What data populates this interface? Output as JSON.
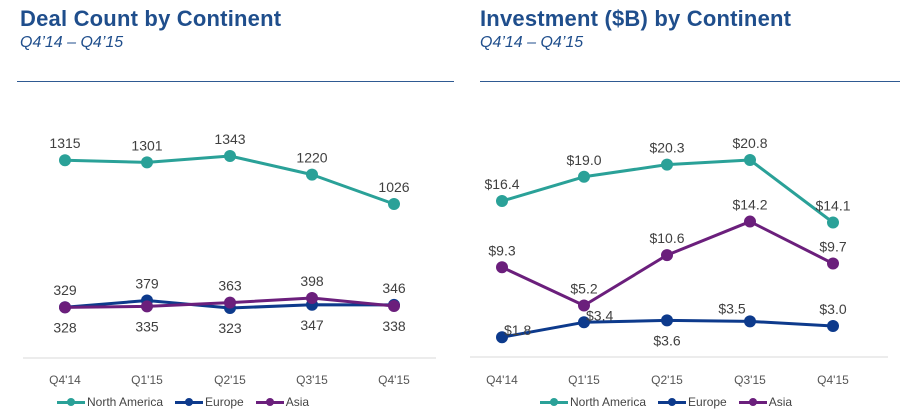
{
  "chart_data": [
    {
      "type": "line",
      "title": "Deal Count by Continent",
      "subtitle": "Q4’14 – Q4’15",
      "xlabel": "",
      "ylabel": "",
      "categories": [
        "Q4'14",
        "Q1'15",
        "Q2'15",
        "Q3'15",
        "Q4'15"
      ],
      "series": [
        {
          "name": "North America",
          "color": "#2aa198",
          "values": [
            1315,
            1301,
            1343,
            1220,
            1026
          ],
          "labels": [
            "1315",
            "1301",
            "1343",
            "1220",
            "1026"
          ],
          "label_pos": [
            "above",
            "above",
            "above",
            "above",
            "above"
          ]
        },
        {
          "name": "Europe",
          "color": "#0d3a8c",
          "values": [
            329,
            379,
            323,
            347,
            346
          ],
          "labels": [
            "329",
            "379",
            "323",
            "347",
            "346"
          ],
          "label_pos": [
            "above",
            "above",
            "below",
            "below",
            "above"
          ]
        },
        {
          "name": "Asia",
          "color": "#6b1f7c",
          "values": [
            328,
            335,
            363,
            398,
            338
          ],
          "labels": [
            "328",
            "335",
            "363",
            "398",
            "338"
          ],
          "label_pos": [
            "below",
            "below",
            "above",
            "above",
            "below"
          ]
        }
      ],
      "ylim": [
        0,
        1450
      ],
      "grid": false,
      "legend": "bottom-center"
    },
    {
      "type": "line",
      "title": "Investment ($B) by Continent",
      "subtitle": "Q4’14 – Q4’15",
      "xlabel": "",
      "ylabel": "",
      "categories": [
        "Q4'14",
        "Q1'15",
        "Q2'15",
        "Q3'15",
        "Q4'15"
      ],
      "series": [
        {
          "name": "North America",
          "color": "#2aa198",
          "values": [
            16.4,
            19.0,
            20.3,
            20.8,
            14.1
          ],
          "labels": [
            "$16.4",
            "$19.0",
            "$20.3",
            "$20.8",
            "$14.1"
          ],
          "label_pos": [
            "above",
            "above",
            "above",
            "above",
            "above"
          ]
        },
        {
          "name": "Europe",
          "color": "#0d3a8c",
          "values": [
            1.8,
            3.4,
            3.6,
            3.5,
            3.0
          ],
          "labels": [
            "$1.8",
            "$3.4",
            "$3.6",
            "$3.5",
            "$3.0"
          ],
          "label_pos": [
            "right",
            "right",
            "below",
            "above-left",
            "above"
          ]
        },
        {
          "name": "Asia",
          "color": "#6b1f7c",
          "values": [
            9.3,
            5.2,
            10.6,
            14.2,
            9.7
          ],
          "labels": [
            "$9.3",
            "$5.2",
            "$10.6",
            "$14.2",
            "$9.7"
          ],
          "label_pos": [
            "above",
            "above",
            "above",
            "above",
            "above"
          ]
        }
      ],
      "ylim": [
        0,
        22
      ],
      "grid": false,
      "legend": "bottom-center"
    }
  ]
}
